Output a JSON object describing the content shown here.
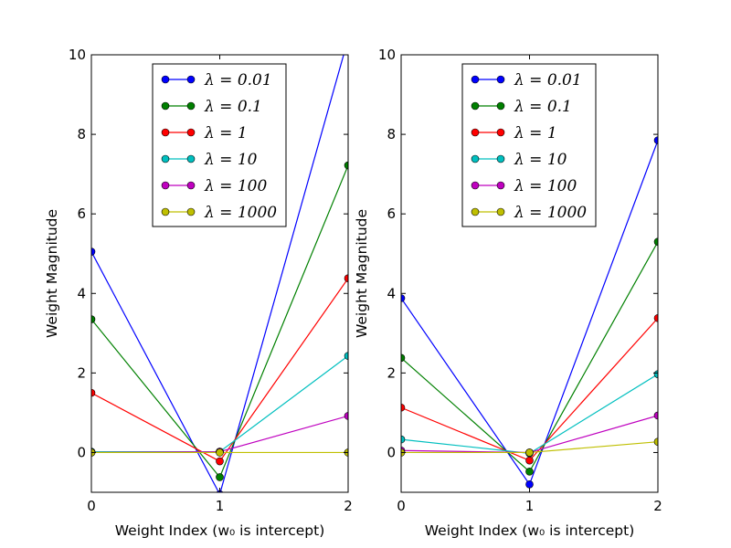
{
  "chart_data": [
    {
      "type": "line",
      "title": "",
      "xlabel": "Weight Index (w₀ is intercept)",
      "ylabel": "Weight Magnitude",
      "xlim": [
        0,
        2
      ],
      "ylim": [
        -1,
        10
      ],
      "xticks": [
        "0",
        "1",
        "2"
      ],
      "yticks": [
        "0",
        "2",
        "4",
        "6",
        "8",
        "10"
      ],
      "grid": false,
      "legend_position": "top-center",
      "x": [
        0,
        1,
        2
      ],
      "series": [
        {
          "name": "λ = 0.01",
          "color": "#0000ff",
          "values": [
            5.05,
            -1.05,
            10.4
          ]
        },
        {
          "name": "λ = 0.1",
          "color": "#008000",
          "values": [
            3.35,
            -0.62,
            7.22
          ]
        },
        {
          "name": "λ = 1",
          "color": "#ff0000",
          "values": [
            1.5,
            -0.22,
            4.38
          ]
        },
        {
          "name": "λ = 10",
          "color": "#00bfbf",
          "values": [
            0.02,
            0.02,
            2.43
          ]
        },
        {
          "name": "λ = 100",
          "color": "#bf00bf",
          "values": [
            0.0,
            0.02,
            0.92
          ]
        },
        {
          "name": "λ = 1000",
          "color": "#bfbf00",
          "values": [
            0.0,
            0.0,
            0.0
          ]
        }
      ]
    },
    {
      "type": "line",
      "title": "",
      "xlabel": "Weight Index (w₀ is intercept)",
      "ylabel": "Weight Magnitude",
      "xlim": [
        0,
        2
      ],
      "ylim": [
        -1,
        10
      ],
      "xticks": [
        "0",
        "1",
        "2"
      ],
      "yticks": [
        "0",
        "2",
        "4",
        "6",
        "8",
        "10"
      ],
      "grid": false,
      "legend_position": "top-center",
      "x": [
        0,
        1,
        2
      ],
      "series": [
        {
          "name": "λ = 0.01",
          "color": "#0000ff",
          "values": [
            3.88,
            -0.8,
            7.85
          ]
        },
        {
          "name": "λ = 0.1",
          "color": "#008000",
          "values": [
            2.38,
            -0.48,
            5.3
          ]
        },
        {
          "name": "λ = 1",
          "color": "#ff0000",
          "values": [
            1.13,
            -0.2,
            3.38
          ]
        },
        {
          "name": "λ = 10",
          "color": "#00bfbf",
          "values": [
            0.33,
            -0.02,
            1.97
          ]
        },
        {
          "name": "λ = 100",
          "color": "#bf00bf",
          "values": [
            0.05,
            0.0,
            0.93
          ]
        },
        {
          "name": "λ = 1000",
          "color": "#bfbf00",
          "values": [
            0.0,
            0.0,
            0.27
          ]
        }
      ]
    }
  ]
}
